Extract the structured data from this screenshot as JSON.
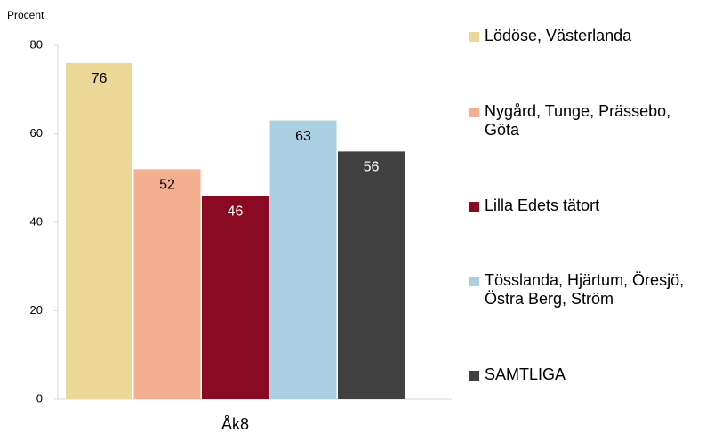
{
  "chart_data": {
    "type": "bar",
    "y_label": "Procent",
    "categories": [
      "Åk8"
    ],
    "series": [
      {
        "name": "Lödöse, Västerlanda",
        "color": "#ebd898",
        "values": [
          76
        ]
      },
      {
        "name": "Nygård, Tunge, Prässebo, Göta",
        "color": "#f4ae90",
        "values": [
          52
        ]
      },
      {
        "name": "Lilla Edets tätort",
        "color": "#8b0a23",
        "values": [
          46
        ]
      },
      {
        "name": "Tösslanda, Hjärtum, Öresjö, Östra Berg, Ström",
        "color": "#a9cfe0",
        "values": [
          63
        ]
      },
      {
        "name": "SAMTLIGA",
        "color": "#404040",
        "values": [
          56
        ]
      }
    ],
    "ylim": [
      0,
      80
    ],
    "yticks": [
      0,
      20,
      40,
      60,
      80
    ],
    "grid": false,
    "legend": "right"
  }
}
